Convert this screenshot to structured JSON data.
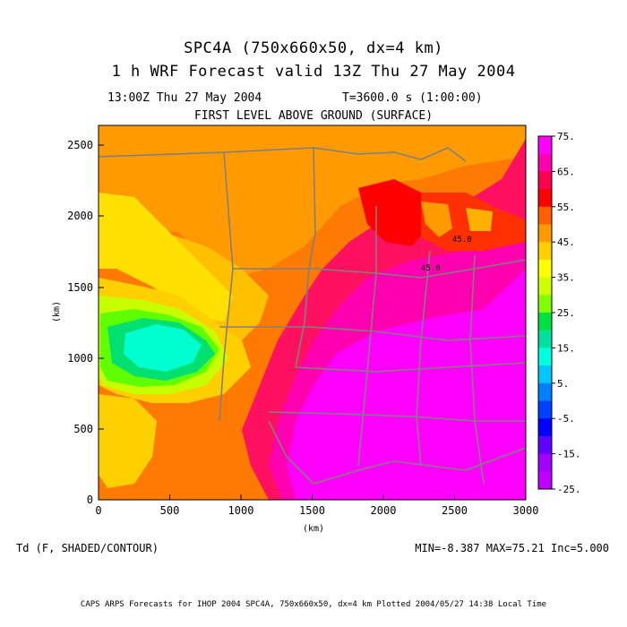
{
  "header": {
    "run_title": "SPC4A (750x660x50, dx=4 km)",
    "forecast_title": "1 h WRF Forecast valid 13Z Thu 27 May 2004",
    "valid_time": "13:00Z Thu 27 May 2004",
    "model_time": "T=3600.0 s (1:00:00)",
    "level": "FIRST LEVEL ABOVE GROUND (SURFACE)"
  },
  "axes": {
    "xlabel": "(km)",
    "ylabel": "(km)",
    "x_ticks": [
      "0",
      "500",
      "1000",
      "1500",
      "2000",
      "2500",
      "3000"
    ],
    "y_ticks": [
      "0",
      "500",
      "1000",
      "1500",
      "2000",
      "2500"
    ],
    "x_range": [
      0,
      3000
    ],
    "y_range": [
      0,
      2640
    ]
  },
  "colorbar": {
    "labels": [
      "75.",
      "65.",
      "55.",
      "45.",
      "35.",
      "25.",
      "15.",
      "5.",
      "-5.",
      "-15.",
      "-25."
    ],
    "colors": [
      "#ff00ff",
      "#ff00b0",
      "#ff0050",
      "#ff0000",
      "#ff6000",
      "#ff9a00",
      "#ffd000",
      "#ffff00",
      "#d0ff00",
      "#80ff00",
      "#00e040",
      "#00e0a0",
      "#00ffe0",
      "#00c8ff",
      "#0080ff",
      "#0040ff",
      "#0000ff",
      "#6000ff",
      "#a000ff",
      "#c000ff"
    ]
  },
  "contour_labels": [
    "45.0",
    "45.0"
  ],
  "footer": {
    "field": "Td (F, SHADED/CONTOUR)",
    "stats": "MIN=-8.387 MAX=75.21 Inc=5.000",
    "credit": "CAPS ARPS Forecasts for IHOP 2004   SPC4A, 750x660x50, dx=4 km   Plotted 2004/05/27 14:38 Local Time"
  }
}
